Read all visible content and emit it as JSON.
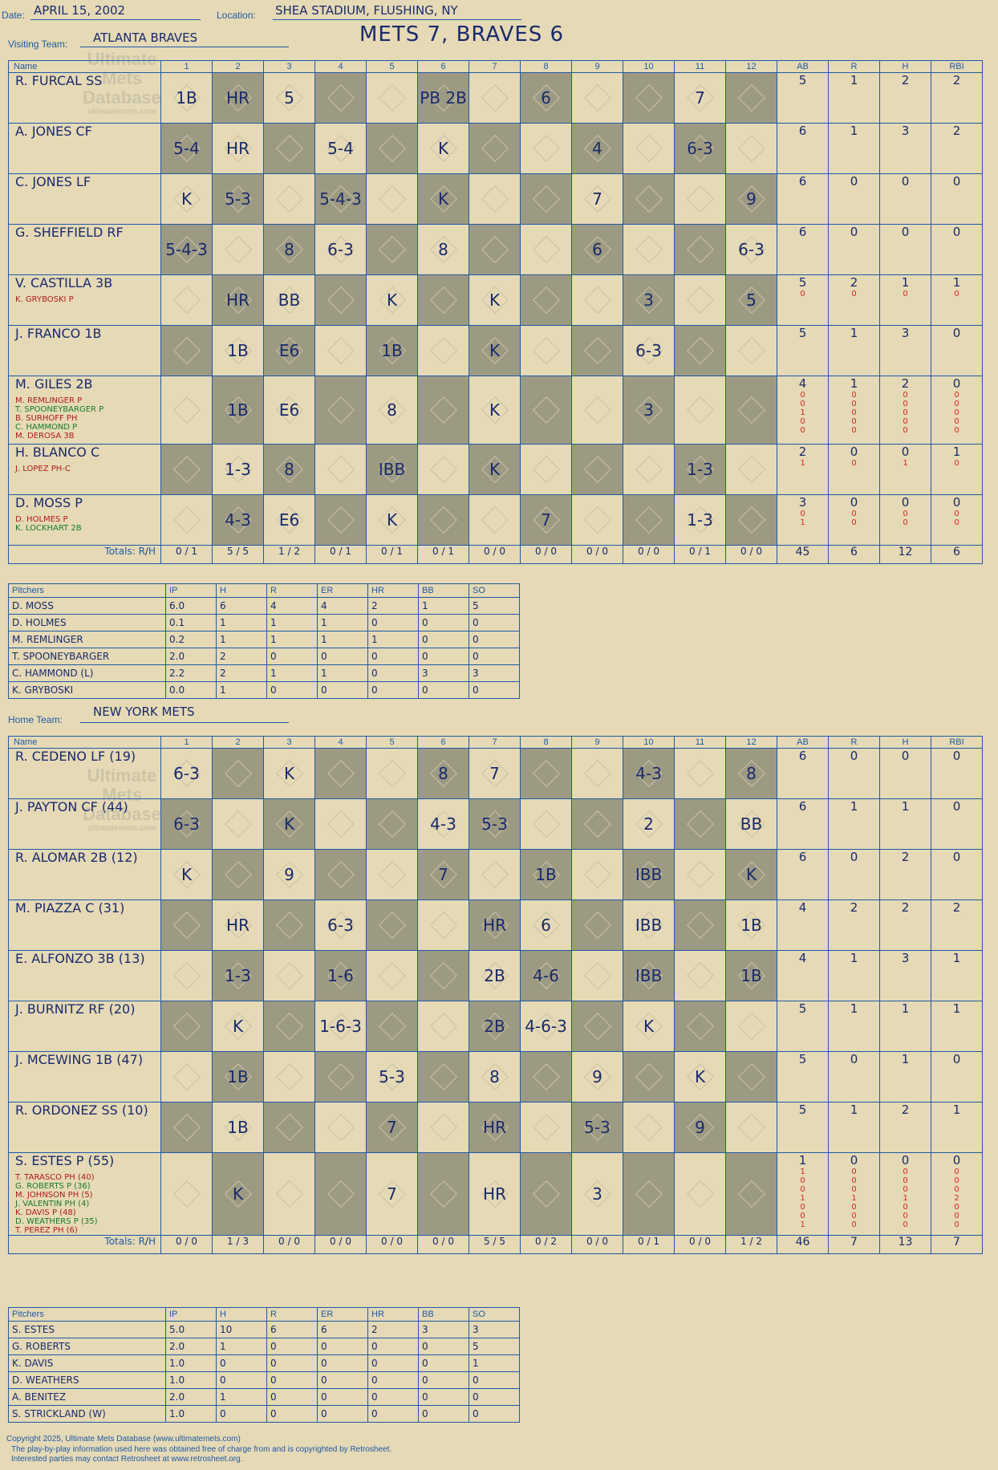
{
  "header": {
    "date_label": "Date:",
    "date": "APRIL 15, 2002",
    "location_label": "Location:",
    "location": "SHEA STADIUM, FLUSHING, NY",
    "visiting_label": "Visiting Team:",
    "visiting": "ATLANTA BRAVES",
    "home_label": "Home Team:",
    "home": "NEW YORK METS",
    "title": "METS 7, BRAVES 6"
  },
  "watermark": {
    "l1": "Ultimate",
    "l2": "Mets",
    "l3": "Database",
    "l4": "ultimatemets.com"
  },
  "innings": [
    "1",
    "2",
    "3",
    "4",
    "5",
    "6",
    "7",
    "8",
    "9",
    "10",
    "11",
    "12"
  ],
  "stat_cols": [
    "AB",
    "R",
    "H",
    "RBI"
  ],
  "name_col": "Name",
  "totals_label": "Totals:",
  "rh": {
    "r": "R",
    "h": "H"
  },
  "pitchers_label": "Pitchers",
  "pit_cols": [
    "IP",
    "H",
    "R",
    "ER",
    "HR",
    "BB",
    "SO"
  ],
  "visitors": {
    "rows": [
      {
        "name": "R. FURCAL SS",
        "subs": [],
        "cells": [
          "1B",
          "HR",
          "5",
          "",
          "",
          "PB 2B",
          "",
          "6",
          "",
          "",
          "7",
          ""
        ],
        "ab": "5",
        "r": "1",
        "h": "2",
        "rbi": "2"
      },
      {
        "name": "A. JONES CF",
        "subs": [],
        "cells": [
          "5-4",
          "HR",
          "",
          "5-4",
          "",
          "K",
          "",
          "",
          "4",
          "",
          "6-3",
          ""
        ],
        "ab": "6",
        "r": "1",
        "h": "3",
        "rbi": "2"
      },
      {
        "name": "C. JONES LF",
        "subs": [],
        "cells": [
          "K",
          "5-3",
          "",
          "5-4-3",
          "",
          "K",
          "",
          "",
          "7",
          "",
          "",
          "9"
        ],
        "ab": "6",
        "r": "0",
        "h": "0",
        "rbi": "0"
      },
      {
        "name": "G. SHEFFIELD RF",
        "subs": [],
        "cells": [
          "5-4-3",
          "",
          "8",
          "6-3",
          "",
          "8",
          "",
          "",
          "6",
          "",
          "",
          "6-3"
        ],
        "ab": "6",
        "r": "0",
        "h": "0",
        "rbi": "0"
      },
      {
        "name": "V. CASTILLA 3B",
        "subs": [
          "K. GRYBOSKI P"
        ],
        "cells": [
          "",
          "HR",
          "BB",
          "",
          "K",
          "",
          "K",
          "",
          "",
          "3",
          "",
          "5"
        ],
        "ab": "5",
        "r": "2",
        "h": "1",
        "rbi": "1",
        "sub_stats": [
          [
            "0",
            "0",
            "0",
            "0"
          ]
        ]
      },
      {
        "name": "J. FRANCO 1B",
        "subs": [],
        "cells": [
          "",
          "1B",
          "E6",
          "",
          "1B",
          "",
          "K",
          "",
          "",
          "6-3",
          "",
          ""
        ],
        "ab": "5",
        "r": "1",
        "h": "3",
        "rbi": "0"
      },
      {
        "name": "M. GILES 2B",
        "subs": [
          "M. REMLINGER P",
          "T. SPOONEYBARGER P",
          "B. SURHOFF PH",
          "C. HAMMOND P",
          "M. DEROSA 3B"
        ],
        "cells": [
          "",
          "1B",
          "E6",
          "",
          "8",
          "",
          "K",
          "",
          "",
          "3",
          "",
          ""
        ],
        "ab": "4",
        "r": "1",
        "h": "2",
        "rbi": "0",
        "sub_stats": [
          [
            "0",
            "0",
            "0",
            "0"
          ],
          [
            "0",
            "0",
            "0",
            "0"
          ],
          [
            "1",
            "0",
            "0",
            "0"
          ],
          [
            "0",
            "0",
            "0",
            "0"
          ],
          [
            "0",
            "0",
            "0",
            "0"
          ]
        ]
      },
      {
        "name": "H. BLANCO C",
        "subs": [
          "J. LOPEZ PH-C"
        ],
        "cells": [
          "",
          "1-3",
          "8",
          "",
          "IBB",
          "",
          "K",
          "",
          "",
          "",
          "1-3",
          ""
        ],
        "ab": "2",
        "r": "0",
        "h": "0",
        "rbi": "1",
        "sub_stats": [
          [
            "1",
            "0",
            "1",
            "0"
          ]
        ]
      },
      {
        "name": "D. MOSS P",
        "subs": [
          "D. HOLMES P",
          "K. LOCKHART 2B"
        ],
        "cells": [
          "",
          "4-3",
          "E6",
          "",
          "K",
          "",
          "",
          "7",
          "",
          "",
          "1-3",
          ""
        ],
        "ab": "3",
        "r": "0",
        "h": "0",
        "rbi": "0",
        "sub_stats": [
          [
            "0",
            "0",
            "0",
            "0"
          ],
          [
            "1",
            "0",
            "0",
            "0"
          ]
        ]
      }
    ],
    "totals": [
      [
        "0",
        "1"
      ],
      [
        "5",
        "5"
      ],
      [
        "1",
        "2"
      ],
      [
        "0",
        "1"
      ],
      [
        "0",
        "1"
      ],
      [
        "0",
        "1"
      ],
      [
        "0",
        "0"
      ],
      [
        "0",
        "0"
      ],
      [
        "0",
        "0"
      ],
      [
        "0",
        "0"
      ],
      [
        "0",
        "1"
      ],
      [
        "0",
        "0"
      ]
    ],
    "totals_stats": [
      "45",
      "6",
      "12",
      "6"
    ],
    "pitchers": [
      {
        "name": "D. MOSS",
        "v": [
          "6.0",
          "6",
          "4",
          "4",
          "2",
          "1",
          "5"
        ]
      },
      {
        "name": "D. HOLMES",
        "v": [
          "0.1",
          "1",
          "1",
          "1",
          "0",
          "0",
          "0"
        ]
      },
      {
        "name": "M. REMLINGER",
        "v": [
          "0.2",
          "1",
          "1",
          "1",
          "1",
          "0",
          "0"
        ]
      },
      {
        "name": "T. SPOONEYBARGER",
        "v": [
          "2.0",
          "2",
          "0",
          "0",
          "0",
          "0",
          "0"
        ]
      },
      {
        "name": "C. HAMMOND (L)",
        "v": [
          "2.2",
          "2",
          "1",
          "1",
          "0",
          "3",
          "3"
        ]
      },
      {
        "name": "K. GRYBOSKI",
        "v": [
          "0.0",
          "1",
          "0",
          "0",
          "0",
          "0",
          "0"
        ]
      }
    ]
  },
  "home": {
    "rows": [
      {
        "name": "R. CEDENO LF (19)",
        "subs": [],
        "cells": [
          "6-3",
          "",
          "K",
          "",
          "",
          "8",
          "7",
          "",
          "",
          "4-3",
          "",
          "8"
        ],
        "ab": "6",
        "r": "0",
        "h": "0",
        "rbi": "0"
      },
      {
        "name": "J. PAYTON CF (44)",
        "subs": [],
        "cells": [
          "6-3",
          "",
          "K",
          "",
          "",
          "4-3",
          "5-3",
          "",
          "",
          "2",
          "",
          "BB"
        ],
        "ab": "6",
        "r": "1",
        "h": "1",
        "rbi": "0"
      },
      {
        "name": "R. ALOMAR 2B (12)",
        "subs": [],
        "cells": [
          "K",
          "",
          "9",
          "",
          "",
          "7",
          "",
          "1B",
          "",
          "IBB",
          "",
          "K"
        ],
        "ab": "6",
        "r": "0",
        "h": "2",
        "rbi": "0"
      },
      {
        "name": "M. PIAZZA C (31)",
        "subs": [],
        "cells": [
          "",
          "HR",
          "",
          "6-3",
          "",
          "",
          "HR",
          "6",
          "",
          "IBB",
          "",
          "1B"
        ],
        "ab": "4",
        "r": "2",
        "h": "2",
        "rbi": "2"
      },
      {
        "name": "E. ALFONZO 3B (13)",
        "subs": [],
        "cells": [
          "",
          "1-3",
          "",
          "1-6",
          "",
          "",
          "2B",
          "4-6",
          "",
          "IBB",
          "",
          "1B"
        ],
        "ab": "4",
        "r": "1",
        "h": "3",
        "rbi": "1"
      },
      {
        "name": "J. BURNITZ RF (20)",
        "subs": [],
        "cells": [
          "",
          "K",
          "",
          "1-6-3",
          "",
          "",
          "2B",
          "4-6-3",
          "",
          "K",
          "",
          ""
        ],
        "ab": "5",
        "r": "1",
        "h": "1",
        "rbi": "1"
      },
      {
        "name": "J. MCEWING 1B (47)",
        "subs": [],
        "cells": [
          "",
          "1B",
          "",
          "",
          "5-3",
          "",
          "8",
          "",
          "9",
          "",
          "K",
          ""
        ],
        "ab": "5",
        "r": "0",
        "h": "1",
        "rbi": "0"
      },
      {
        "name": "R. ORDONEZ SS (10)",
        "subs": [],
        "cells": [
          "",
          "1B",
          "",
          "",
          "7",
          "",
          "HR",
          "",
          "5-3",
          "",
          "9",
          ""
        ],
        "ab": "5",
        "r": "1",
        "h": "2",
        "rbi": "1"
      },
      {
        "name": "S. ESTES P (55)",
        "subs": [
          "T. TARASCO PH (40)",
          "G. ROBERTS P (36)",
          "M. JOHNSON PH (5)",
          "J. VALENTIN PH (4)",
          "K. DAVIS P (48)",
          "D. WEATHERS P (35)",
          "T. PEREZ PH (6)"
        ],
        "cells": [
          "",
          "K",
          "",
          "",
          "7",
          "",
          "HR",
          "",
          "3",
          "",
          "",
          ""
        ],
        "ab": "1",
        "r": "0",
        "h": "0",
        "rbi": "0",
        "sub_stats": [
          [
            "1",
            "0",
            "0",
            "0"
          ],
          [
            "0",
            "0",
            "0",
            "0"
          ],
          [
            "0",
            "0",
            "0",
            "0"
          ],
          [
            "1",
            "1",
            "1",
            "2"
          ],
          [
            "0",
            "0",
            "0",
            "0"
          ],
          [
            "0",
            "0",
            "0",
            "0"
          ],
          [
            "1",
            "0",
            "0",
            "0"
          ]
        ]
      }
    ],
    "totals": [
      [
        "0",
        "0"
      ],
      [
        "1",
        "3"
      ],
      [
        "0",
        "0"
      ],
      [
        "0",
        "0"
      ],
      [
        "0",
        "0"
      ],
      [
        "0",
        "0"
      ],
      [
        "5",
        "5"
      ],
      [
        "0",
        "2"
      ],
      [
        "0",
        "0"
      ],
      [
        "0",
        "1"
      ],
      [
        "0",
        "0"
      ],
      [
        "1",
        "2"
      ]
    ],
    "totals_stats": [
      "46",
      "7",
      "13",
      "7"
    ],
    "pitchers": [
      {
        "name": "S. ESTES",
        "v": [
          "5.0",
          "10",
          "6",
          "6",
          "2",
          "3",
          "3"
        ]
      },
      {
        "name": "G. ROBERTS",
        "v": [
          "2.0",
          "1",
          "0",
          "0",
          "0",
          "0",
          "5"
        ]
      },
      {
        "name": "K. DAVIS",
        "v": [
          "1.0",
          "0",
          "0",
          "0",
          "0",
          "0",
          "1"
        ]
      },
      {
        "name": "D. WEATHERS",
        "v": [
          "1.0",
          "0",
          "0",
          "0",
          "0",
          "0",
          "0"
        ]
      },
      {
        "name": "A. BENITEZ",
        "v": [
          "2.0",
          "1",
          "0",
          "0",
          "0",
          "0",
          "0"
        ]
      },
      {
        "name": "S. STRICKLAND (W)",
        "v": [
          "1.0",
          "0",
          "0",
          "0",
          "0",
          "0",
          "0"
        ]
      }
    ]
  },
  "footer": {
    "l1": "Copyright 2025, Ultimate Mets Database (www.ultimatemets.com)",
    "l2": "The play-by-play information used here was obtained free of charge from and is copyrighted by Retrosheet.",
    "l3": "Interested parties may contact Retrosheet at www.retrosheet.org."
  }
}
